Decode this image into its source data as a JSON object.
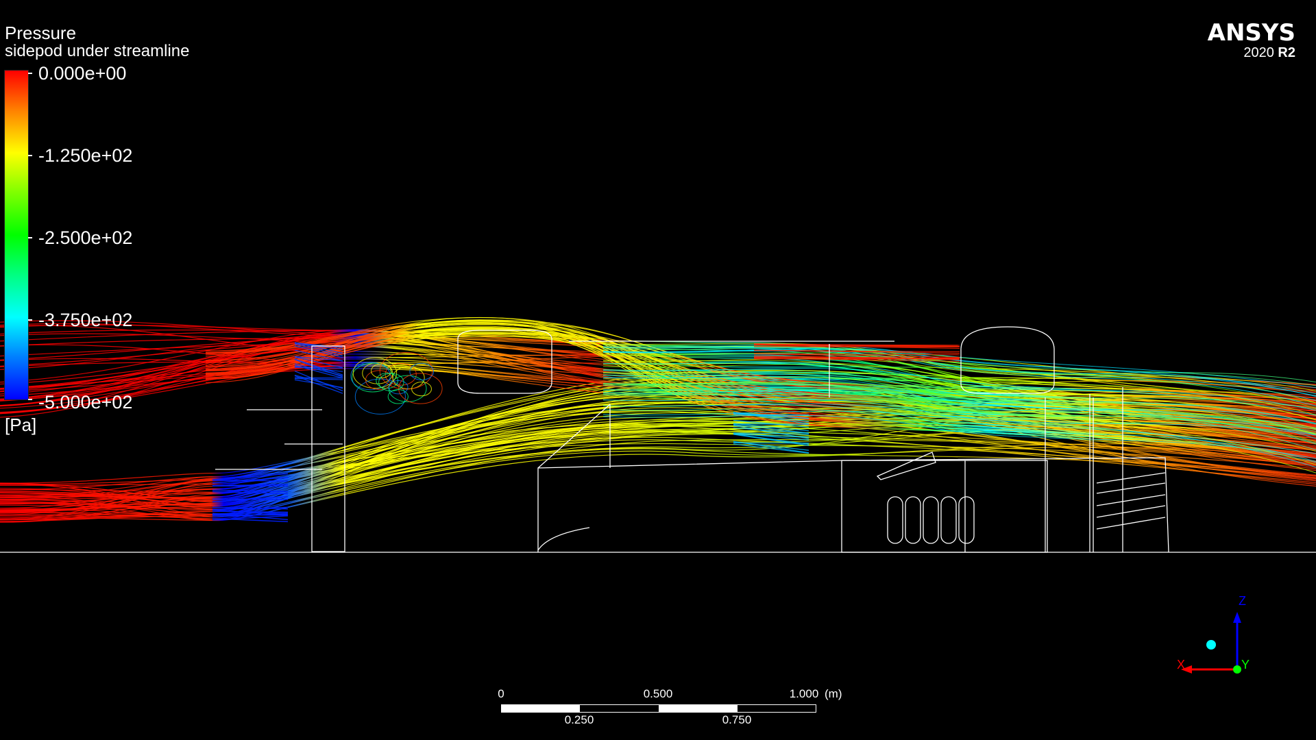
{
  "legend": {
    "title": "Pressure",
    "subtitle": "sidepod under streamline",
    "ticks": [
      "0.000e+00",
      "-1.250e+02",
      "-2.500e+02",
      "-3.750e+02",
      "-5.000e+02"
    ],
    "unit": "[Pa]",
    "range": [
      -500,
      0
    ],
    "colormap": [
      "#ff0000",
      "#ffff00",
      "#00ff00",
      "#00ffff",
      "#0000ff"
    ]
  },
  "brand": {
    "name": "ANSYS",
    "version_year": "2020",
    "version_release": "R2"
  },
  "scale_bar": {
    "top_labels": [
      "0",
      "0.500",
      "1.000"
    ],
    "bottom_labels": [
      "0.250",
      "0.750"
    ],
    "unit": "(m)"
  },
  "triad": {
    "x_label": "X",
    "y_label": "Y",
    "z_label": "Z",
    "x_color": "#ff0000",
    "y_color": "#00ff00",
    "z_color": "#0000ff"
  },
  "colors": {
    "background": "#000000",
    "geometry": "#ffffff"
  }
}
